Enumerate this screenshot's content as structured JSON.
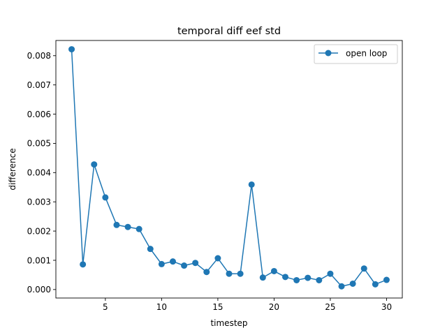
{
  "chart_data": {
    "type": "line",
    "title": "temporal diff eef std",
    "xlabel": "timestep",
    "ylabel": "difference",
    "xlim": [
      0.6,
      31.4
    ],
    "ylim": [
      -0.00029,
      0.00852
    ],
    "x_ticks": [
      5,
      10,
      15,
      20,
      25,
      30
    ],
    "x_tick_labels": [
      "5",
      "10",
      "15",
      "20",
      "25",
      "30"
    ],
    "y_ticks": [
      0,
      0.001,
      0.002,
      0.003,
      0.004,
      0.005,
      0.006,
      0.007,
      0.008
    ],
    "y_tick_labels": [
      "0.000",
      "0.001",
      "0.002",
      "0.003",
      "0.004",
      "0.005",
      "0.006",
      "0.007",
      "0.008"
    ],
    "grid": false,
    "legend_position": "upper right",
    "series": [
      {
        "name": "open loop",
        "color": "#1f77b4",
        "marker": "circle",
        "x": [
          2,
          3,
          4,
          5,
          6,
          7,
          8,
          9,
          10,
          11,
          12,
          13,
          14,
          15,
          16,
          17,
          18,
          19,
          20,
          21,
          22,
          23,
          24,
          25,
          26,
          27,
          28,
          29,
          30
        ],
        "y": [
          0.00822,
          0.00086,
          0.00428,
          0.00315,
          0.00221,
          0.00214,
          0.00207,
          0.00139,
          0.00087,
          0.00096,
          0.00082,
          0.00091,
          0.0006,
          0.00107,
          0.00054,
          0.00054,
          0.00359,
          0.00041,
          0.00063,
          0.00043,
          0.00032,
          0.0004,
          0.00032,
          0.00054,
          0.00011,
          0.0002,
          0.00072,
          0.00018,
          0.00033
        ]
      }
    ]
  }
}
